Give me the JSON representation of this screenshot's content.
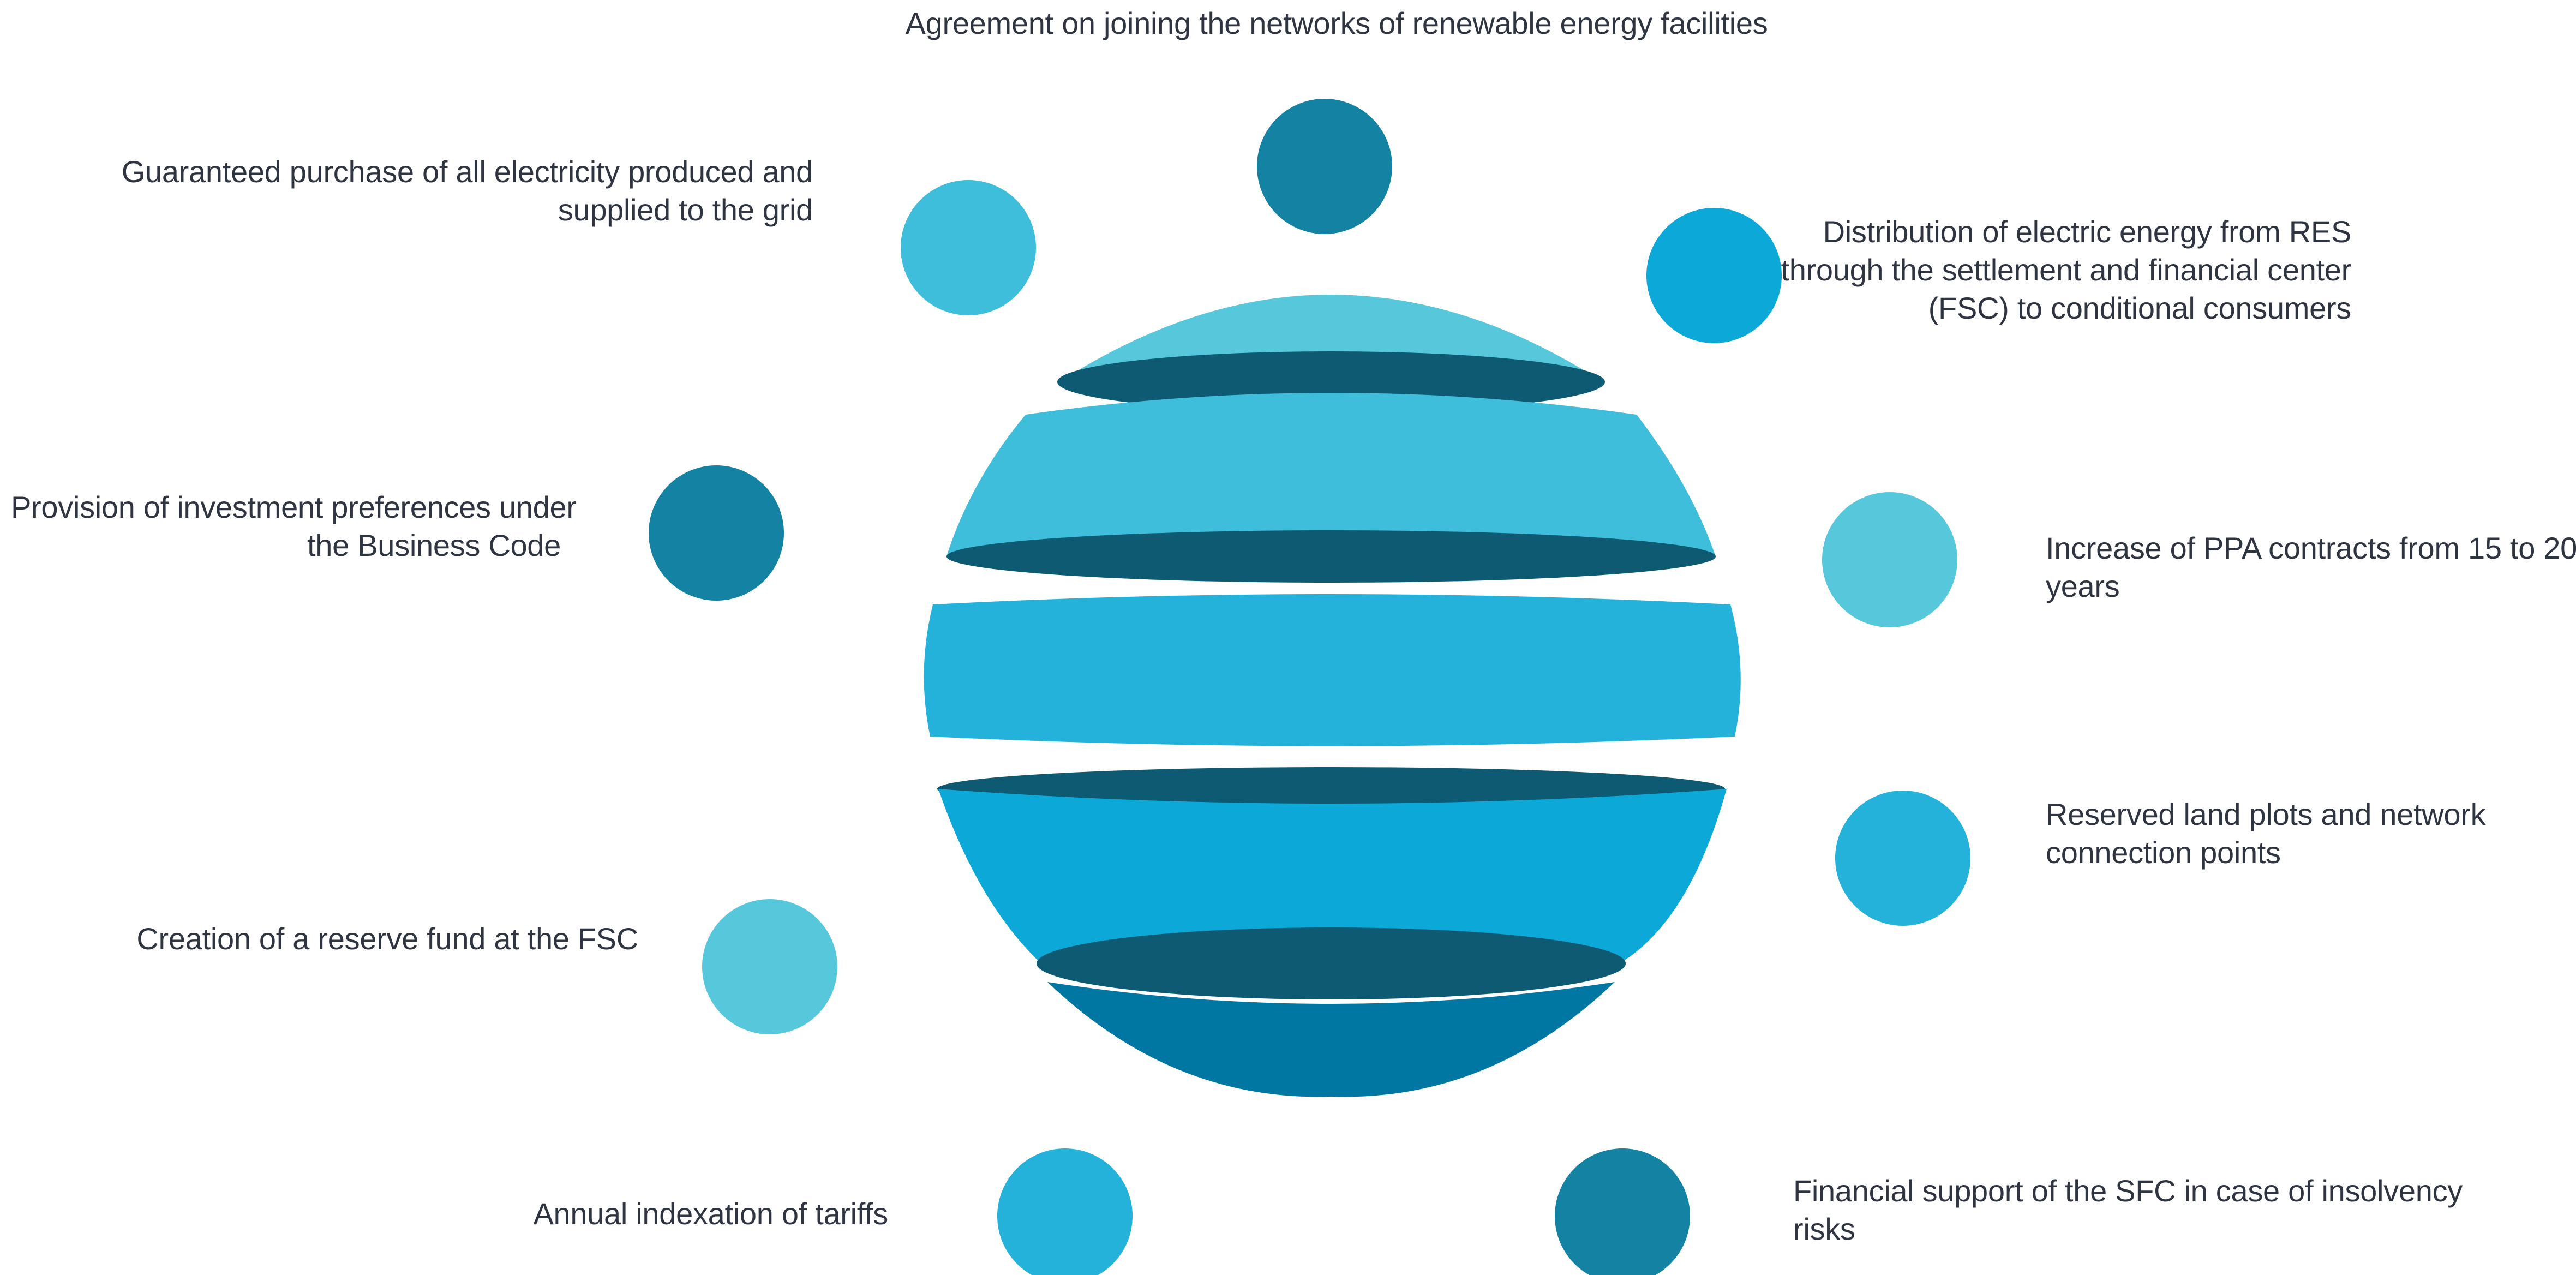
{
  "palette": {
    "dark": "#0e5a72",
    "teal": "#1482a2",
    "light": "#57c8dc",
    "mid": "#3ebedb",
    "sky": "#25b2da",
    "blue": "#0ca8d8",
    "deep": "#0076a3",
    "text": "#2e3440"
  },
  "items": [
    {
      "id": "top",
      "lines": [
        "Agreement on joining the networks of renewable energy facilities"
      ],
      "color": "teal"
    },
    {
      "id": "guaranteed",
      "lines": [
        "Guaranteed purchase of all electricity produced and",
        "supplied to the grid"
      ],
      "color": "mid"
    },
    {
      "id": "distribution",
      "lines": [
        "Distribution of electric energy from RES",
        "through the settlement and financial center",
        "(FSC) to conditional consumers"
      ],
      "color": "blue"
    },
    {
      "id": "investment",
      "lines": [
        "Provision of investment preferences under",
        "the Business Code"
      ],
      "color": "teal"
    },
    {
      "id": "ppa",
      "lines": [
        "Increase of PPA contracts from 15 to 20",
        "years"
      ],
      "color": "light"
    },
    {
      "id": "reserved",
      "lines": [
        "Reserved land plots and network",
        "connection points"
      ],
      "color": "sky"
    },
    {
      "id": "reserve-fund",
      "lines": [
        "Creation of a reserve fund at the FSC"
      ],
      "color": "light"
    },
    {
      "id": "indexation",
      "lines": [
        "Annual indexation of tariffs"
      ],
      "color": "sky"
    },
    {
      "id": "financial-support",
      "lines": [
        "Financial support of the SFC in case of insolvency",
        "risks"
      ],
      "color": "teal"
    }
  ]
}
